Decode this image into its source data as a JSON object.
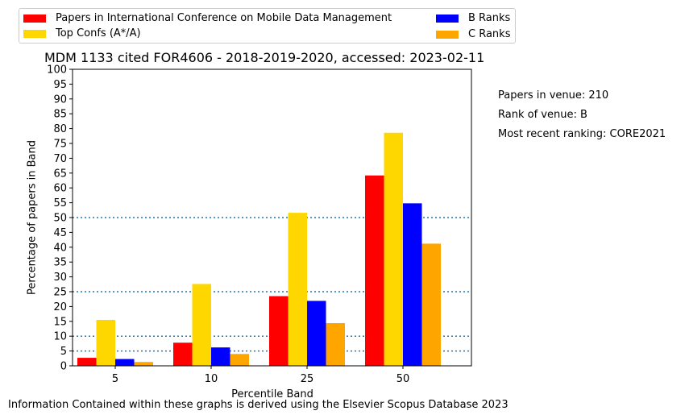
{
  "chart_data": {
    "type": "bar",
    "title": "MDM 1133 cited FOR4606 - 2018-2019-2020, accessed: 2023-02-11",
    "xlabel": "Percentile Band",
    "ylabel": "Percentage of papers in Band",
    "categories": [
      "5",
      "10",
      "25",
      "50"
    ],
    "ylim": [
      0,
      100
    ],
    "yticks": [
      0,
      5,
      10,
      15,
      20,
      25,
      30,
      35,
      40,
      45,
      50,
      55,
      60,
      65,
      70,
      75,
      80,
      85,
      90,
      95,
      100
    ],
    "reference_lines": [
      5,
      10,
      25,
      50
    ],
    "legend_position": "top (above plot, two columns)",
    "grid": false,
    "series": [
      {
        "name": "Papers in International Conference on Mobile Data Management",
        "color": "#ff0000",
        "values": [
          2.7,
          7.8,
          23.5,
          64.2
        ]
      },
      {
        "name": "Top Confs (A*/A)",
        "color": "#ffd700",
        "values": [
          15.5,
          27.6,
          51.6,
          78.6
        ]
      },
      {
        "name": "B Ranks",
        "color": "#0000ff",
        "values": [
          2.3,
          6.2,
          21.9,
          54.8
        ]
      },
      {
        "name": "C Ranks",
        "color": "#ffa500",
        "values": [
          1.3,
          4.0,
          14.4,
          41.2
        ]
      }
    ]
  },
  "side_notes": {
    "papers": "Papers in venue: 210",
    "rank": "Rank of venue: B",
    "recent": "Most recent ranking: CORE2021"
  },
  "footer": "Information Contained within these graphs is derived using the Elsevier Scopus Database 2023",
  "colors": {
    "reference_line": "#1f77b4",
    "axis": "#000000"
  }
}
